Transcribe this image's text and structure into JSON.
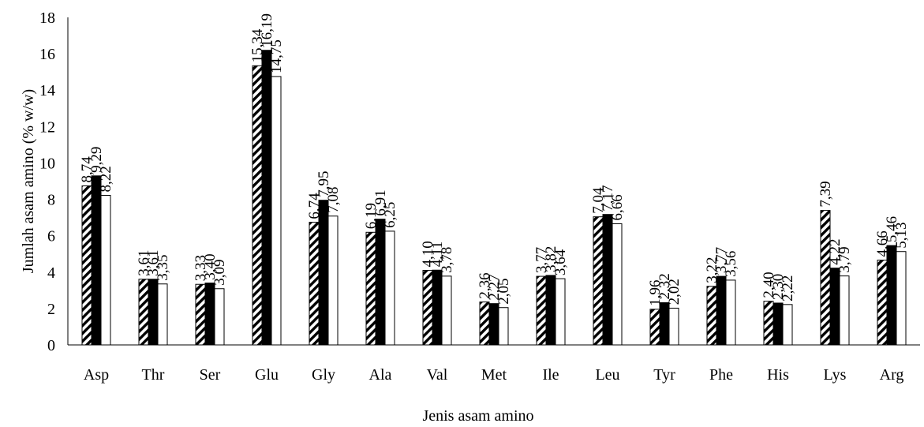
{
  "chart_data": {
    "type": "bar",
    "xlabel": "Jenis asam amino",
    "ylabel": "Jumlah asam amino (% w/w)",
    "ylim": [
      0,
      18
    ],
    "yticks": [
      0,
      2,
      4,
      6,
      8,
      10,
      12,
      14,
      16,
      18
    ],
    "categories": [
      "Asp",
      "Thr",
      "Ser",
      "Glu",
      "Gly",
      "Ala",
      "Val",
      "Met",
      "Ile",
      "Leu",
      "Tyr",
      "Phe",
      "His",
      "Lys",
      "Arg"
    ],
    "series": [
      {
        "fill": "hatched",
        "values": [
          8.74,
          3.61,
          3.33,
          15.34,
          6.74,
          6.19,
          4.1,
          2.36,
          3.77,
          7.04,
          1.96,
          3.22,
          2.4,
          7.39,
          4.66
        ],
        "labels": [
          "8,74",
          "3,61",
          "3,33",
          "15,34",
          "6,74",
          "6,19",
          "4,10",
          "2,36",
          "3,77",
          "7,04",
          "1,96",
          "3,22",
          "2,40",
          "7,39",
          "4,66"
        ]
      },
      {
        "fill": "#000000",
        "values": [
          9.29,
          3.61,
          3.4,
          16.19,
          7.95,
          6.91,
          4.11,
          2.27,
          3.82,
          7.17,
          2.32,
          3.77,
          2.3,
          4.22,
          5.46
        ],
        "labels": [
          "9,29",
          "3,61",
          "3,40",
          "16,19",
          "7,95",
          "6,91",
          "4,11",
          "2,27",
          "3,82",
          "7,17",
          "2,32",
          "3,77",
          "2,30",
          "4,22",
          "5,46"
        ]
      },
      {
        "fill": "#ffffff",
        "values": [
          8.22,
          3.35,
          3.09,
          14.75,
          7.08,
          6.25,
          3.78,
          2.05,
          3.64,
          6.66,
          2.02,
          3.56,
          2.22,
          3.79,
          5.13
        ],
        "labels": [
          "8,22",
          "3,35",
          "3,09",
          "14,75",
          "7,08",
          "6,25",
          "3,78",
          "2,05",
          "3,64",
          "6,66",
          "2,02",
          "3,56",
          "2,22",
          "3,79",
          "5,13"
        ]
      }
    ],
    "grid": false,
    "legend": "none"
  }
}
